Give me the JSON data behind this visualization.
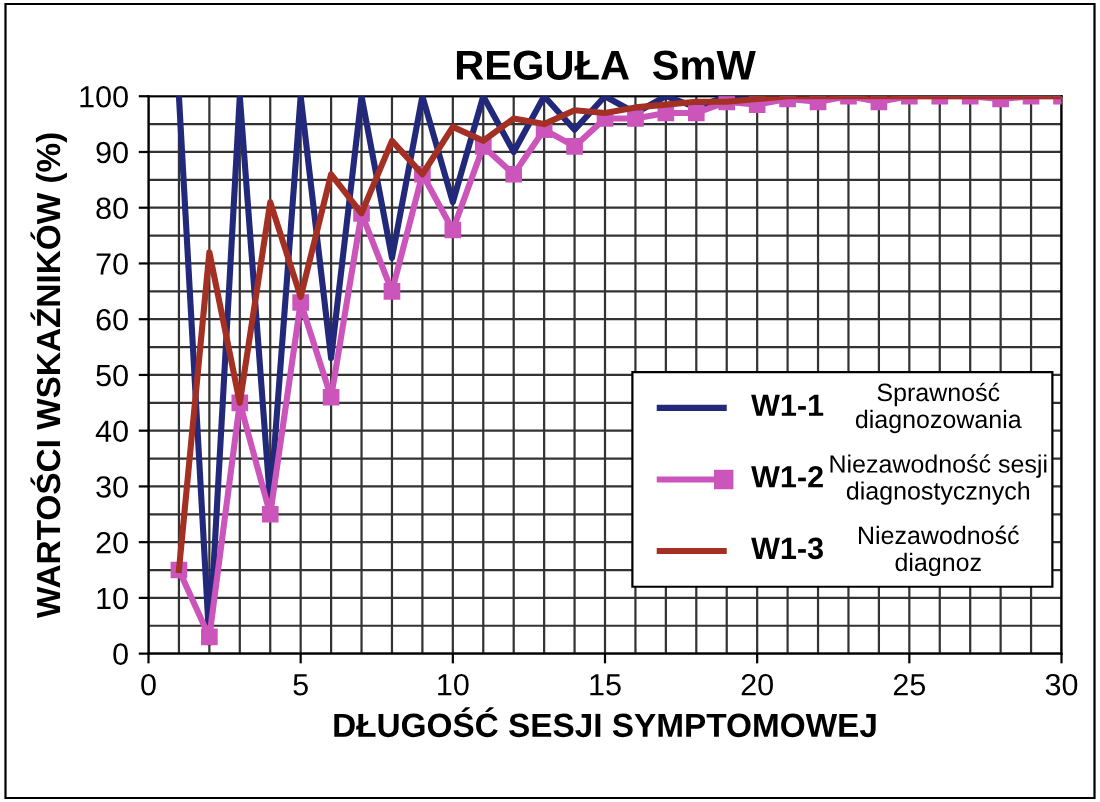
{
  "chart_data": {
    "type": "line",
    "title": "REGUŁA  SmW",
    "xlabel": "DŁUGOŚĆ SESJI SYMPTOMOWEJ",
    "ylabel": "WARTOŚCI WSKAŹNIKÓW (%)",
    "x": [
      1,
      2,
      3,
      4,
      5,
      6,
      7,
      8,
      9,
      10,
      11,
      12,
      13,
      14,
      15,
      16,
      17,
      18,
      19,
      20,
      21,
      22,
      23,
      24,
      25,
      26,
      27,
      28,
      29,
      30
    ],
    "series": [
      {
        "name": "W1-1",
        "color": "#22287a",
        "marker": "none",
        "values": [
          100,
          2,
          100,
          27,
          100,
          53,
          100,
          71,
          100,
          81,
          100,
          90,
          100,
          94,
          100,
          97,
          100,
          98,
          100,
          100,
          null,
          null,
          null,
          null,
          null,
          null,
          null,
          null,
          null,
          null
        ]
      },
      {
        "name": "W1-2",
        "color": "#cc55bb",
        "marker": "square",
        "values": [
          15,
          3,
          45,
          25,
          63,
          46,
          79,
          65,
          86,
          76,
          91,
          86,
          94,
          91,
          96,
          96,
          97,
          97,
          99,
          98.5,
          99.5,
          99,
          100,
          99,
          100,
          100,
          100,
          99.5,
          100,
          100
        ]
      },
      {
        "name": "W1-3",
        "color": "#a33022",
        "marker": "none",
        "values": [
          15,
          72,
          45,
          81,
          64,
          86,
          79,
          92,
          86,
          94.5,
          92,
          96,
          95,
          97.5,
          97,
          98,
          98.5,
          99,
          99,
          99.5,
          100,
          100,
          100,
          100,
          100,
          100,
          100,
          100,
          100,
          100
        ]
      }
    ],
    "annotations": [
      "Sprawność\ndiagnozowania",
      "Niezawodność sesji\ndiagnostycznych",
      "Niezawodność\ndiagnoz"
    ],
    "xlim": [
      0,
      30
    ],
    "xticks": [
      0,
      5,
      10,
      15,
      20,
      25,
      30
    ],
    "ylim": [
      0,
      100
    ],
    "yticks": [
      0,
      10,
      20,
      30,
      40,
      50,
      60,
      70,
      80,
      90,
      100
    ],
    "grid": true,
    "legend": "bottom right"
  }
}
